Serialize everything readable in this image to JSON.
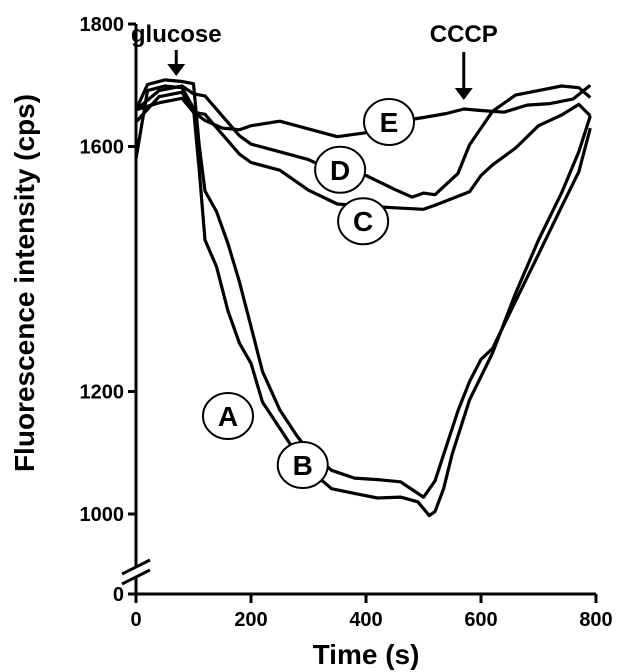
{
  "chart_data": {
    "type": "line",
    "title": "",
    "xlabel": "Time (s)",
    "ylabel": "Fluorescence intensity (cps)",
    "xlim": [
      0,
      800
    ],
    "ylim": [
      1000,
      1800
    ],
    "x_ticks": [
      0,
      200,
      400,
      600,
      800
    ],
    "x_tick_labels": [
      "0",
      "200",
      "400",
      "600",
      "800"
    ],
    "y_ticks": [
      1000,
      1200,
      1600,
      1800
    ],
    "y_tick_labels": [
      "1000",
      "1200",
      "1600",
      "1800"
    ],
    "y_zero_label": "0",
    "y_axis_break": true,
    "grid": false,
    "annotations": [
      {
        "text": "glucose",
        "x": 70
      },
      {
        "text": "CCCP",
        "x": 570
      }
    ],
    "series": [
      {
        "name": "A",
        "label_at": [
          160,
          1160
        ],
        "x": [
          0,
          20,
          50,
          80,
          100,
          110,
          120,
          140,
          160,
          180,
          200,
          220,
          250,
          280,
          300,
          340,
          380,
          420,
          460,
          490,
          510,
          520,
          535,
          550,
          580,
          620,
          660,
          700,
          740,
          770,
          790
        ],
        "y": [
          1580,
          1690,
          1700,
          1700,
          1660,
          1560,
          1450,
          1400,
          1330,
          1280,
          1250,
          1180,
          1140,
          1100,
          1070,
          1040,
          1035,
          1030,
          1025,
          1020,
          1000,
          1000,
          1040,
          1100,
          1190,
          1260,
          1360,
          1450,
          1520,
          1590,
          1650
        ]
      },
      {
        "name": "B",
        "label_at": [
          290,
          1080
        ],
        "x": [
          0,
          20,
          50,
          80,
          100,
          110,
          120,
          140,
          160,
          180,
          200,
          220,
          250,
          280,
          300,
          340,
          380,
          420,
          460,
          480,
          500,
          520,
          540,
          560,
          580,
          600,
          620,
          660,
          700,
          740,
          770,
          790
        ],
        "y": [
          1660,
          1700,
          1710,
          1710,
          1700,
          1600,
          1530,
          1490,
          1440,
          1380,
          1310,
          1230,
          1170,
          1130,
          1100,
          1070,
          1060,
          1060,
          1050,
          1040,
          1030,
          1050,
          1110,
          1170,
          1220,
          1250,
          1270,
          1350,
          1420,
          1500,
          1560,
          1630
        ]
      },
      {
        "name": "C",
        "label_at": [
          395,
          1478
        ],
        "x": [
          0,
          40,
          80,
          100,
          120,
          150,
          180,
          200,
          250,
          300,
          350,
          400,
          450,
          500,
          520,
          540,
          560,
          580,
          600,
          620,
          660,
          700,
          740,
          770,
          790
        ],
        "y": [
          1640,
          1680,
          1690,
          1660,
          1650,
          1620,
          1590,
          1570,
          1560,
          1530,
          1510,
          1500,
          1500,
          1500,
          1500,
          1510,
          1520,
          1530,
          1550,
          1570,
          1600,
          1630,
          1650,
          1670,
          1650
        ]
      },
      {
        "name": "D",
        "label_at": [
          355,
          1562
        ],
        "x": [
          0,
          40,
          80,
          100,
          120,
          150,
          180,
          200,
          250,
          300,
          350,
          400,
          450,
          480,
          500,
          520,
          540,
          560,
          580,
          600,
          620,
          660,
          700,
          740,
          770,
          790
        ],
        "y": [
          1660,
          1690,
          1700,
          1690,
          1680,
          1650,
          1620,
          1600,
          1590,
          1580,
          1560,
          1550,
          1530,
          1520,
          1520,
          1520,
          1540,
          1560,
          1600,
          1630,
          1660,
          1680,
          1690,
          1700,
          1700,
          1680
        ]
      },
      {
        "name": "E",
        "label_at": [
          440,
          1640
        ],
        "x": [
          0,
          40,
          80,
          100,
          120,
          150,
          180,
          200,
          250,
          300,
          350,
          400,
          450,
          500,
          540,
          570,
          600,
          640,
          680,
          720,
          760,
          790
        ],
        "y": [
          1660,
          1670,
          1680,
          1660,
          1640,
          1630,
          1630,
          1630,
          1640,
          1630,
          1620,
          1620,
          1640,
          1650,
          1650,
          1660,
          1660,
          1660,
          1665,
          1670,
          1680,
          1700
        ]
      }
    ]
  }
}
